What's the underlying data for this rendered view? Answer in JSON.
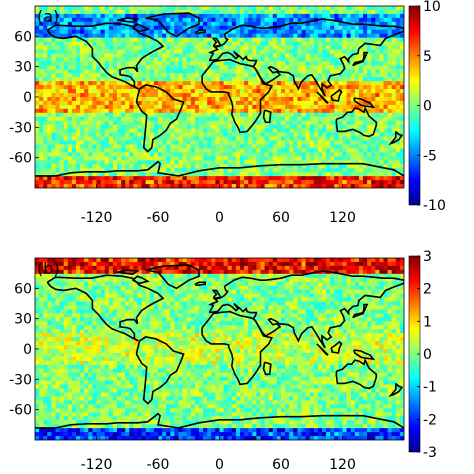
{
  "chart_data": [
    {
      "type": "heatmap",
      "panel_label": "(a)",
      "title": "",
      "xlabel": "",
      "ylabel": "",
      "x_ticks": [
        -120,
        -60,
        0,
        60,
        120
      ],
      "y_ticks": [
        60,
        30,
        0,
        -30,
        -60
      ],
      "xlim": [
        -180,
        180
      ],
      "ylim": [
        -90,
        90
      ],
      "colorbar": {
        "min": -10,
        "max": 10,
        "ticks": [
          10,
          5,
          0,
          -5,
          -10
        ],
        "colormap": "jet"
      },
      "color_features": [
        {
          "lat_band": [
            -90,
            -78
          ],
          "value": 9
        },
        {
          "lat_band": [
            -15,
            15
          ],
          "value": 5
        },
        {
          "lat_band": [
            60,
            82
          ],
          "value": -6
        }
      ]
    },
    {
      "type": "heatmap",
      "panel_label": "(b)",
      "title": "",
      "xlabel": "",
      "ylabel": "",
      "x_ticks": [
        -120,
        -60,
        0,
        60,
        120
      ],
      "y_ticks": [
        60,
        30,
        0,
        -30,
        -60
      ],
      "xlim": [
        -180,
        180
      ],
      "ylim": [
        -90,
        90
      ],
      "colorbar": {
        "min": -3,
        "max": 3,
        "ticks": [
          3,
          2,
          1,
          0,
          -1,
          -2,
          -3
        ],
        "colormap": "jet"
      },
      "color_features": [
        {
          "lat_band": [
            76,
            90
          ],
          "value": 3
        },
        {
          "lat_band": [
            -90,
            -78
          ],
          "value": -2.5
        },
        {
          "lat_band": [
            -15,
            15
          ],
          "value": 0.5
        }
      ]
    }
  ]
}
